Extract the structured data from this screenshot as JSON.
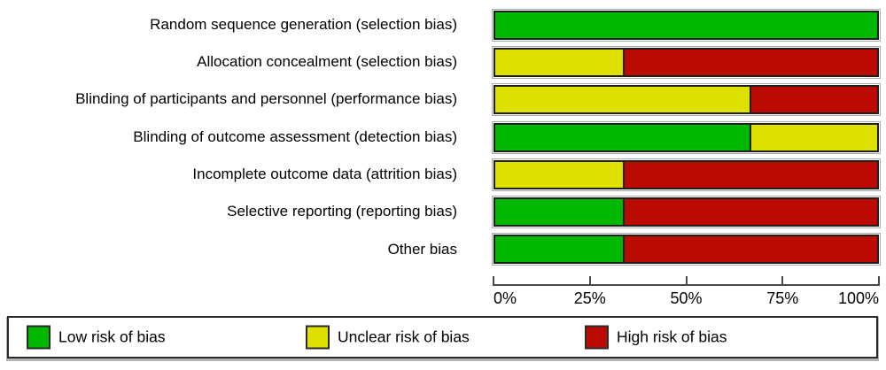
{
  "chart_data": {
    "type": "bar",
    "subtype": "horizontal-stacked-percentage",
    "title": "",
    "xlabel": "",
    "ylabel": "",
    "xlim": [
      0,
      100
    ],
    "grid": false,
    "legend_position": "bottom",
    "categories": [
      "Random sequence generation (selection bias)",
      "Allocation concealment (selection bias)",
      "Blinding of participants and personnel (performance bias)",
      "Blinding of outcome assessment (detection bias)",
      "Incomplete outcome data (attrition bias)",
      "Selective reporting (reporting bias)",
      "Other bias"
    ],
    "series": [
      {
        "key": "low",
        "name": "Low risk of bias",
        "color": "#00b800",
        "values": [
          100,
          0,
          0,
          66.7,
          0,
          33.3,
          33.3
        ]
      },
      {
        "key": "unclear",
        "name": "Unclear risk of bias",
        "color": "#dee000",
        "values": [
          0,
          33.3,
          66.7,
          33.3,
          33.3,
          0,
          0
        ]
      },
      {
        "key": "high",
        "name": "High risk of bias",
        "color": "#bb0a00",
        "values": [
          0,
          66.7,
          33.3,
          0,
          66.7,
          66.7,
          66.7
        ]
      }
    ],
    "x_ticks": [
      "0%",
      "25%",
      "50%",
      "75%",
      "100%"
    ]
  },
  "legend": {
    "items": [
      {
        "key": "low",
        "label": "Low risk of bias",
        "color": "#00b800"
      },
      {
        "key": "unclear",
        "label": "Unclear risk of bias",
        "color": "#dee000"
      },
      {
        "key": "high",
        "label": "High risk of bias",
        "color": "#bb0a00"
      }
    ]
  }
}
